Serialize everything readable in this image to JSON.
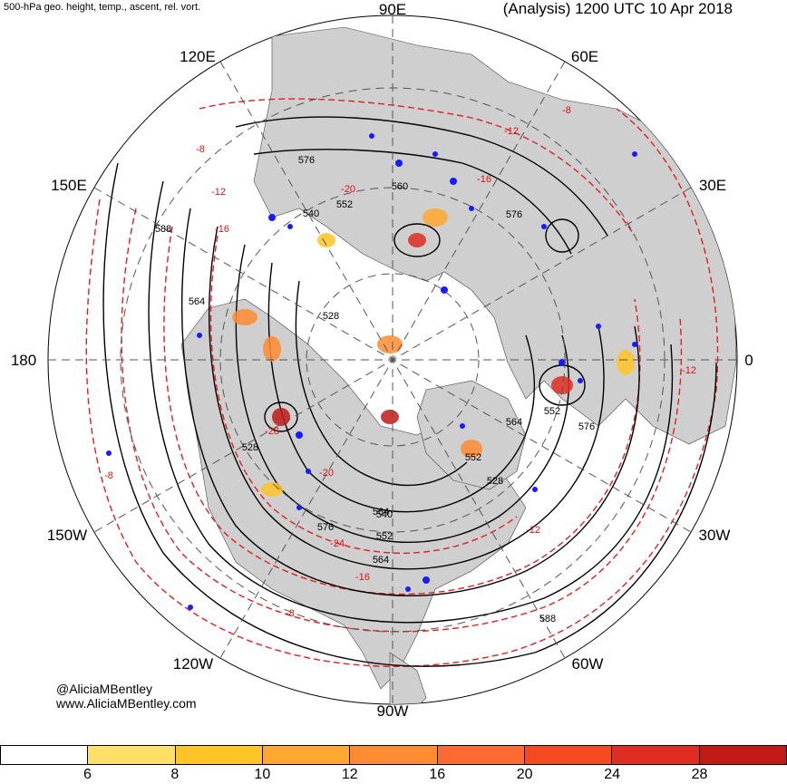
{
  "header": {
    "product": "500-hPa geo. height, temp., ascent, rel. vort.",
    "title": "(Analysis) 1200 UTC 10 Apr 2018"
  },
  "longitudes": {
    "top": "90E",
    "right": "0",
    "bottom": "90W",
    "left": "180",
    "upper_left": "120E",
    "upper_right": "60E",
    "left_upper": "150E",
    "right_upper": "30E",
    "left_lower": "150W",
    "right_lower": "30W",
    "lower_left": "120W",
    "lower_right": "60W"
  },
  "contour_labels": {
    "height": [
      "576",
      "552",
      "540",
      "588",
      "564",
      "528",
      "564",
      "552",
      "576",
      "564",
      "528",
      "540",
      "552",
      "564",
      "576",
      "588",
      "528",
      "560",
      "576",
      "552"
    ],
    "temperature": [
      "-8",
      "-12",
      "-16",
      "-20",
      "-16",
      "-12",
      "-8",
      "-28",
      "-20",
      "-24",
      "-16",
      "-12",
      "-8",
      "-8",
      "-12"
    ]
  },
  "credit": {
    "name": "@AliciaMBentley",
    "url": "www.AliciaMBentley.com"
  },
  "colorbar": {
    "labels": [
      "6",
      "8",
      "10",
      "12",
      "16",
      "20",
      "24",
      "28"
    ],
    "colors": [
      "#ffffff",
      "#ffe066",
      "#ffc425",
      "#ffa72e",
      "#ff8c33",
      "#ff6a33",
      "#f54a1f",
      "#e02d23",
      "#c21a17"
    ]
  },
  "colors": {
    "land": "#cfcfcf",
    "ocean": "#ffffff",
    "height_contour": "#000000",
    "temp_contour": "#e01f1f",
    "ascent": "#1a1aff",
    "grid": "#555555"
  }
}
